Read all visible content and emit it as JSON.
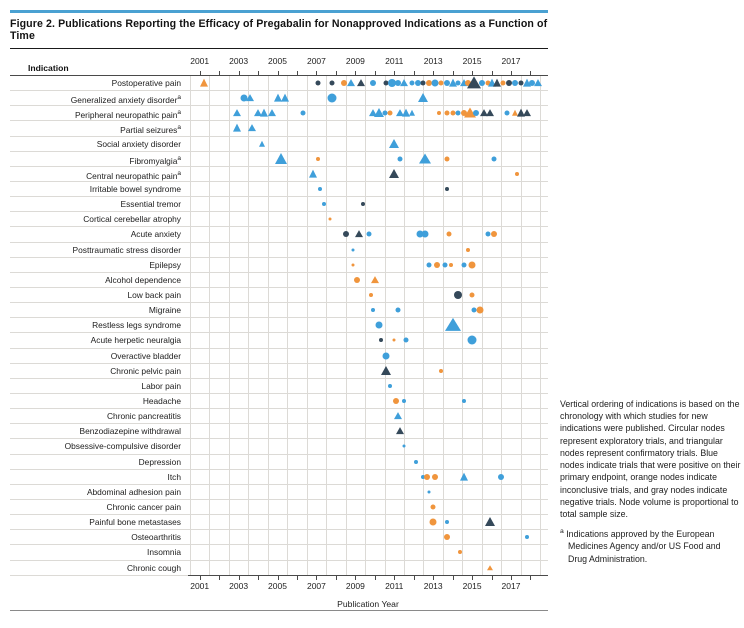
{
  "figure": {
    "title": "Figure 2. Publications Reporting the Efficacy of Pregabalin for Nonapproved Indications as a Function of Time",
    "indication_header": "Indication",
    "xlabel": "Publication Year",
    "footnote_marker": "a"
  },
  "caption": {
    "body": "Vertical ordering of indications is based on the chronology with which studies for new indications were published. Circular nodes represent exploratory trials, and triangular nodes represent confirmatory trials. Blue nodes indicate trials that were positive on their primary endpoint, orange nodes indicate inconclusive trials, and gray nodes indicate negative trials. Node volume is proportional to total sample size.",
    "footnote": "Indications approved by the European Medicines Agency and/or US Food and Drug Administration."
  },
  "colors": {
    "accent_bar": "#4aa1d2",
    "positive_blue": "#3f9fda",
    "inconclusive_orange": "#f0953d",
    "negative_gray": "#35495a"
  },
  "chart_data": {
    "type": "scatter",
    "title": "Publications Reporting the Efficacy of Pregabalin for Nonapproved Indications as a Function of Time",
    "xlabel": "Publication Year",
    "x_range": [
      2000.4,
      2018.9
    ],
    "x_label_ticks": [
      2001,
      2003,
      2005,
      2007,
      2009,
      2011,
      2013,
      2015,
      2017
    ],
    "x_minor_ticks": [
      2001,
      2002,
      2003,
      2004,
      2005,
      2006,
      2007,
      2008,
      2009,
      2010,
      2011,
      2012,
      2013,
      2014,
      2015,
      2016,
      2017,
      2018
    ],
    "grid": "vertical lines at each year boundary",
    "shape_legend": {
      "circle": "exploratory trial",
      "triangle": "confirmatory trial"
    },
    "color_legend": {
      "b": "blue = positive on primary endpoint",
      "o": "orange = inconclusive",
      "g": "gray = negative"
    },
    "size_note": "node volume proportional to total sample size (size = px diameter)",
    "marker_format": [
      "year",
      "shape c=circle t=triangle",
      "color b|o|g",
      "size_px"
    ],
    "rows": [
      {
        "label": "Postoperative pain",
        "approved": false,
        "markers": [
          [
            2001.2,
            "t",
            "o",
            8
          ],
          [
            2007.1,
            "c",
            "g",
            5
          ],
          [
            2007.8,
            "c",
            "g",
            5
          ],
          [
            2008.4,
            "c",
            "o",
            6
          ],
          [
            2008.8,
            "t",
            "b",
            7
          ],
          [
            2009.3,
            "t",
            "g",
            7
          ],
          [
            2009.9,
            "c",
            "b",
            6
          ],
          [
            2010.6,
            "c",
            "g",
            5
          ],
          [
            2010.9,
            "c",
            "b",
            8
          ],
          [
            2011.2,
            "c",
            "b",
            6
          ],
          [
            2011.5,
            "t",
            "b",
            7
          ],
          [
            2011.9,
            "c",
            "b",
            5
          ],
          [
            2012.2,
            "c",
            "b",
            6
          ],
          [
            2012.5,
            "c",
            "g",
            5
          ],
          [
            2012.8,
            "c",
            "o",
            6
          ],
          [
            2013.1,
            "c",
            "b",
            7
          ],
          [
            2013.4,
            "c",
            "o",
            5
          ],
          [
            2013.7,
            "c",
            "b",
            6
          ],
          [
            2014.0,
            "t",
            "b",
            8
          ],
          [
            2014.3,
            "c",
            "b",
            5
          ],
          [
            2014.6,
            "t",
            "b",
            7
          ],
          [
            2014.8,
            "c",
            "o",
            6
          ],
          [
            2015.1,
            "t",
            "g",
            12
          ],
          [
            2015.5,
            "c",
            "b",
            6
          ],
          [
            2015.8,
            "c",
            "o",
            5
          ],
          [
            2016.0,
            "t",
            "b",
            8
          ],
          [
            2016.3,
            "t",
            "g",
            8
          ],
          [
            2016.6,
            "c",
            "o",
            5
          ],
          [
            2016.9,
            "c",
            "g",
            6
          ],
          [
            2017.2,
            "c",
            "b",
            6
          ],
          [
            2017.5,
            "c",
            "g",
            5
          ],
          [
            2017.8,
            "t",
            "b",
            8
          ],
          [
            2018.1,
            "c",
            "b",
            6
          ],
          [
            2018.4,
            "t",
            "b",
            7
          ]
        ]
      },
      {
        "label": "Generalized anxiety disorder",
        "approved": true,
        "markers": [
          [
            2003.3,
            "c",
            "b",
            7
          ],
          [
            2003.6,
            "t",
            "b",
            7
          ],
          [
            2005.0,
            "t",
            "b",
            8
          ],
          [
            2005.4,
            "t",
            "b",
            8
          ],
          [
            2007.8,
            "c",
            "b",
            9
          ],
          [
            2012.5,
            "t",
            "b",
            9
          ]
        ]
      },
      {
        "label": "Peripheral neuropathic pain",
        "approved": true,
        "markers": [
          [
            2002.9,
            "t",
            "b",
            7
          ],
          [
            2004.0,
            "t",
            "b",
            7
          ],
          [
            2004.3,
            "t",
            "b",
            8
          ],
          [
            2004.7,
            "t",
            "b",
            7
          ],
          [
            2006.3,
            "c",
            "b",
            5
          ],
          [
            2009.9,
            "t",
            "b",
            7
          ],
          [
            2010.2,
            "t",
            "b",
            9
          ],
          [
            2010.5,
            "c",
            "b",
            5
          ],
          [
            2010.8,
            "c",
            "o",
            5
          ],
          [
            2011.3,
            "t",
            "b",
            7
          ],
          [
            2011.6,
            "t",
            "b",
            8
          ],
          [
            2011.9,
            "t",
            "b",
            6
          ],
          [
            2013.3,
            "c",
            "o",
            4
          ],
          [
            2013.7,
            "c",
            "o",
            5
          ],
          [
            2014.0,
            "c",
            "o",
            5
          ],
          [
            2014.3,
            "c",
            "b",
            5
          ],
          [
            2014.6,
            "c",
            "o",
            6
          ],
          [
            2014.9,
            "t",
            "o",
            10
          ],
          [
            2015.2,
            "c",
            "b",
            6
          ],
          [
            2015.6,
            "t",
            "g",
            7
          ],
          [
            2015.9,
            "t",
            "g",
            7
          ],
          [
            2016.8,
            "c",
            "b",
            5
          ],
          [
            2017.2,
            "t",
            "o",
            6
          ],
          [
            2017.5,
            "t",
            "g",
            8
          ],
          [
            2017.8,
            "t",
            "g",
            7
          ]
        ]
      },
      {
        "label": "Partial seizures",
        "approved": true,
        "markers": [
          [
            2002.9,
            "t",
            "b",
            8
          ],
          [
            2003.7,
            "t",
            "b",
            7
          ]
        ]
      },
      {
        "label": "Social anxiety disorder",
        "approved": false,
        "markers": [
          [
            2004.2,
            "t",
            "b",
            6
          ],
          [
            2011.0,
            "t",
            "b",
            9
          ]
        ]
      },
      {
        "label": "Fibromyalgia",
        "approved": true,
        "markers": [
          [
            2005.2,
            "t",
            "b",
            11
          ],
          [
            2007.1,
            "c",
            "o",
            4
          ],
          [
            2011.3,
            "c",
            "b",
            5
          ],
          [
            2012.6,
            "t",
            "b",
            10
          ],
          [
            2013.7,
            "c",
            "o",
            5
          ],
          [
            2016.1,
            "c",
            "b",
            5
          ]
        ]
      },
      {
        "label": "Central neuropathic pain",
        "approved": true,
        "markers": [
          [
            2006.8,
            "t",
            "b",
            8
          ],
          [
            2011.0,
            "t",
            "g",
            9
          ],
          [
            2017.3,
            "c",
            "o",
            4
          ]
        ]
      },
      {
        "label": "Irritable bowel syndrome",
        "approved": false,
        "markers": [
          [
            2007.2,
            "c",
            "b",
            4
          ],
          [
            2013.7,
            "c",
            "g",
            4
          ]
        ]
      },
      {
        "label": "Essential tremor",
        "approved": false,
        "markers": [
          [
            2007.4,
            "c",
            "b",
            4
          ],
          [
            2009.4,
            "c",
            "g",
            4
          ]
        ]
      },
      {
        "label": "Cortical cerebellar atrophy",
        "approved": false,
        "markers": [
          [
            2007.7,
            "c",
            "o",
            3
          ]
        ]
      },
      {
        "label": "Acute anxiety",
        "approved": false,
        "markers": [
          [
            2008.5,
            "c",
            "g",
            6
          ],
          [
            2009.2,
            "t",
            "g",
            7
          ],
          [
            2009.7,
            "c",
            "b",
            5
          ],
          [
            2012.3,
            "c",
            "b",
            7
          ],
          [
            2012.6,
            "c",
            "b",
            7
          ],
          [
            2013.8,
            "c",
            "o",
            5
          ],
          [
            2015.8,
            "c",
            "b",
            5
          ],
          [
            2016.1,
            "c",
            "o",
            6
          ]
        ]
      },
      {
        "label": "Posttraumatic stress disorder",
        "approved": false,
        "markers": [
          [
            2008.9,
            "c",
            "b",
            3
          ],
          [
            2014.8,
            "c",
            "o",
            4
          ]
        ]
      },
      {
        "label": "Epilepsy",
        "approved": false,
        "markers": [
          [
            2008.9,
            "c",
            "o",
            3
          ],
          [
            2012.8,
            "c",
            "b",
            5
          ],
          [
            2013.2,
            "c",
            "o",
            6
          ],
          [
            2013.6,
            "c",
            "b",
            5
          ],
          [
            2013.9,
            "c",
            "o",
            4
          ],
          [
            2014.6,
            "c",
            "b",
            5
          ],
          [
            2015.0,
            "c",
            "o",
            7
          ]
        ]
      },
      {
        "label": "Alcohol dependence",
        "approved": false,
        "markers": [
          [
            2009.1,
            "c",
            "o",
            6
          ],
          [
            2010.0,
            "t",
            "o",
            7
          ]
        ]
      },
      {
        "label": "Low back pain",
        "approved": false,
        "markers": [
          [
            2009.8,
            "c",
            "o",
            4
          ],
          [
            2014.3,
            "c",
            "g",
            8
          ],
          [
            2015.0,
            "c",
            "o",
            5
          ]
        ]
      },
      {
        "label": "Migraine",
        "approved": false,
        "markers": [
          [
            2009.9,
            "c",
            "b",
            4
          ],
          [
            2011.2,
            "c",
            "b",
            5
          ],
          [
            2015.1,
            "c",
            "b",
            5
          ],
          [
            2015.4,
            "c",
            "o",
            7
          ]
        ]
      },
      {
        "label": "Restless legs syndrome",
        "approved": false,
        "markers": [
          [
            2010.2,
            "c",
            "b",
            7
          ],
          [
            2014.0,
            "t",
            "b",
            13
          ]
        ]
      },
      {
        "label": "Acute herpetic neuralgia",
        "approved": false,
        "markers": [
          [
            2010.3,
            "c",
            "g",
            4
          ],
          [
            2011.0,
            "c",
            "o",
            3
          ],
          [
            2011.6,
            "c",
            "b",
            5
          ],
          [
            2015.0,
            "c",
            "b",
            9
          ]
        ]
      },
      {
        "label": "Overactive bladder",
        "approved": false,
        "markers": [
          [
            2010.6,
            "c",
            "b",
            7
          ]
        ]
      },
      {
        "label": "Chronic pelvic pain",
        "approved": false,
        "markers": [
          [
            2010.6,
            "t",
            "g",
            9
          ],
          [
            2013.4,
            "c",
            "o",
            4
          ]
        ]
      },
      {
        "label": "Labor pain",
        "approved": false,
        "markers": [
          [
            2010.8,
            "c",
            "b",
            4
          ]
        ]
      },
      {
        "label": "Headache",
        "approved": false,
        "markers": [
          [
            2011.1,
            "c",
            "o",
            6
          ],
          [
            2011.5,
            "c",
            "b",
            4
          ],
          [
            2014.6,
            "c",
            "b",
            4
          ]
        ]
      },
      {
        "label": "Chronic pancreatitis",
        "approved": false,
        "markers": [
          [
            2011.2,
            "t",
            "b",
            7
          ]
        ]
      },
      {
        "label": "Benzodiazepine withdrawal",
        "approved": false,
        "markers": [
          [
            2011.3,
            "t",
            "g",
            7
          ]
        ]
      },
      {
        "label": "Obsessive-compulsive disorder",
        "approved": false,
        "markers": [
          [
            2011.5,
            "c",
            "b",
            3
          ]
        ]
      },
      {
        "label": "Depression",
        "approved": false,
        "markers": [
          [
            2012.1,
            "c",
            "b",
            4
          ]
        ]
      },
      {
        "label": "Itch",
        "approved": false,
        "markers": [
          [
            2012.5,
            "c",
            "b",
            4
          ],
          [
            2012.7,
            "c",
            "o",
            6
          ],
          [
            2013.1,
            "c",
            "o",
            6
          ],
          [
            2014.6,
            "t",
            "b",
            8
          ],
          [
            2016.5,
            "c",
            "b",
            6
          ]
        ]
      },
      {
        "label": "Abdominal adhesion pain",
        "approved": false,
        "markers": [
          [
            2012.8,
            "c",
            "b",
            3
          ]
        ]
      },
      {
        "label": "Chronic cancer pain",
        "approved": false,
        "markers": [
          [
            2013.0,
            "c",
            "o",
            5
          ]
        ]
      },
      {
        "label": "Painful bone metastases",
        "approved": false,
        "markers": [
          [
            2013.0,
            "c",
            "o",
            7
          ],
          [
            2013.7,
            "c",
            "b",
            4
          ],
          [
            2015.9,
            "t",
            "g",
            9
          ]
        ]
      },
      {
        "label": "Osteoarthritis",
        "approved": false,
        "markers": [
          [
            2013.7,
            "c",
            "o",
            6
          ],
          [
            2017.8,
            "c",
            "b",
            4
          ]
        ]
      },
      {
        "label": "Insomnia",
        "approved": false,
        "markers": [
          [
            2014.4,
            "c",
            "o",
            4
          ]
        ]
      },
      {
        "label": "Chronic cough",
        "approved": false,
        "markers": [
          [
            2015.9,
            "t",
            "o",
            5
          ]
        ]
      }
    ]
  }
}
